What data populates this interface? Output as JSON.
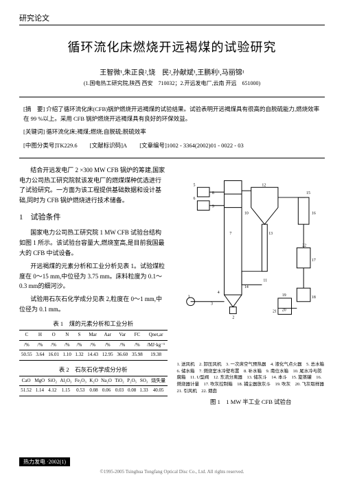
{
  "doctype_label": "研究论文",
  "title": "循环流化床燃烧开远褐煤的试验研究",
  "authors": "王智微¹,朱正良²,饶　民²,孙献斌¹,王鹏利¹,马丽锦¹",
  "affiliations": "(1.国电热工研究院,陕西 西安　710032；2.开远发电厂,云南 开远　651000)",
  "abstract_label": "[摘　要]",
  "abstract_text": "介绍了循环流化床(CFB)锅炉燃烧开远褐煤的试验结果。试验表明开远褐煤具有很高的自脱硫能力,燃烧效率在 99 %以上。采用 CFB 锅炉燃烧开远褐煤具有良好的环保效益。",
  "keywords_label": "[关键词]",
  "keywords_text": "循环流化床;褐煤;燃烧;自脱硫;脱硫效率",
  "class_no_label": "[中图分类号]TK229.6",
  "doc_code_label": "[文献标识码]A",
  "article_no_label": "[文章编号]1002 - 3364(2002)01 - 0022 - 03",
  "intro_para": "结合开远发电厂 2 ×300 MW CFB 锅炉的筹建,国家电力公司热工研究院就该发电厂的燃煤煤种优选进行了试验研究。一方面为该工程提供基础数据和设计基础,同时为 CFB 锅炉燃烧进行技术储备。",
  "sec1_num": "1　试验条件",
  "sec1_p1": "国家电力公司热工研究院 1 MW CFB 试验台结构如图 1 所示。该试验台容量大,燃烧室高,是目前我国最大的 CFB 中试设备。",
  "sec1_p2": "开远褐煤的元素分析和工业分析见表 1。试验煤粒度在 0～15 mm,中位径为 3.75 mm。床料粒度为 0.1～0.3 mm的细河沙。",
  "sec1_p3": "试验用石灰石化学成分见表 2,粒度在 0～1 mm,中位径为 0.1 mm。",
  "table1_caption": "表 1　煤的元素分析和工业分析",
  "table1": {
    "headers": [
      "C",
      "H",
      "O",
      "N",
      "S",
      "Mar",
      "Aar",
      "Var",
      "FC",
      "Qnet,ar"
    ],
    "units": [
      "/%",
      "/%",
      "/%",
      "/%",
      "/%",
      "/%",
      "/%",
      "/%",
      "/%",
      "/MJ·kg⁻¹"
    ],
    "values": [
      "50.55",
      "3.64",
      "16.01",
      "1.10",
      "1.32",
      "14.43",
      "12.95",
      "36.60",
      "35.98",
      "19.38"
    ]
  },
  "table2_caption": "表 2　石灰石化学成分分析",
  "table2": {
    "headers": [
      "CaO",
      "MgO",
      "SiO₂",
      "Al₂O₃",
      "Fe₂O₃",
      "K₂O",
      "Na₂O",
      "TiO₂",
      "P₂O₅",
      "SO₃",
      "烧失量"
    ],
    "values": [
      "51.52",
      "1.14",
      "4.12",
      "1.15",
      "0.53",
      "0.08",
      "0.06",
      "0.03",
      "0.08",
      "1.33",
      "40.05"
    ]
  },
  "legend_text": "1. 送风机　2. 卸压风机　3. 一次床空气预热器　4. 液化气点火器　5. 总水箱　6. 储水箱　7. 燃烧室水冷壁布置　8. 补水箱　9. 南位水箱　10. 尾水冷与防腐箱　11. U型阀　12. 东流分离器　13. 储灰斗　14. 本斗　15. 旋蒸罐　16. 燃烧器计量　17. 吹灰控制箱　18. 捕尘器放灰斗　19. 吹灰　20. 飞灰取样器　21. 引风机　22. 烟囱",
  "fig1_caption": "图 1　1 MW 半工业 CFB 试验台",
  "footer_text": "热力发电  ·2002(1)",
  "copyright": "©1995-2005 Tsinghua Tongfang Optical Disc Co., Ltd.  All rights reserved."
}
